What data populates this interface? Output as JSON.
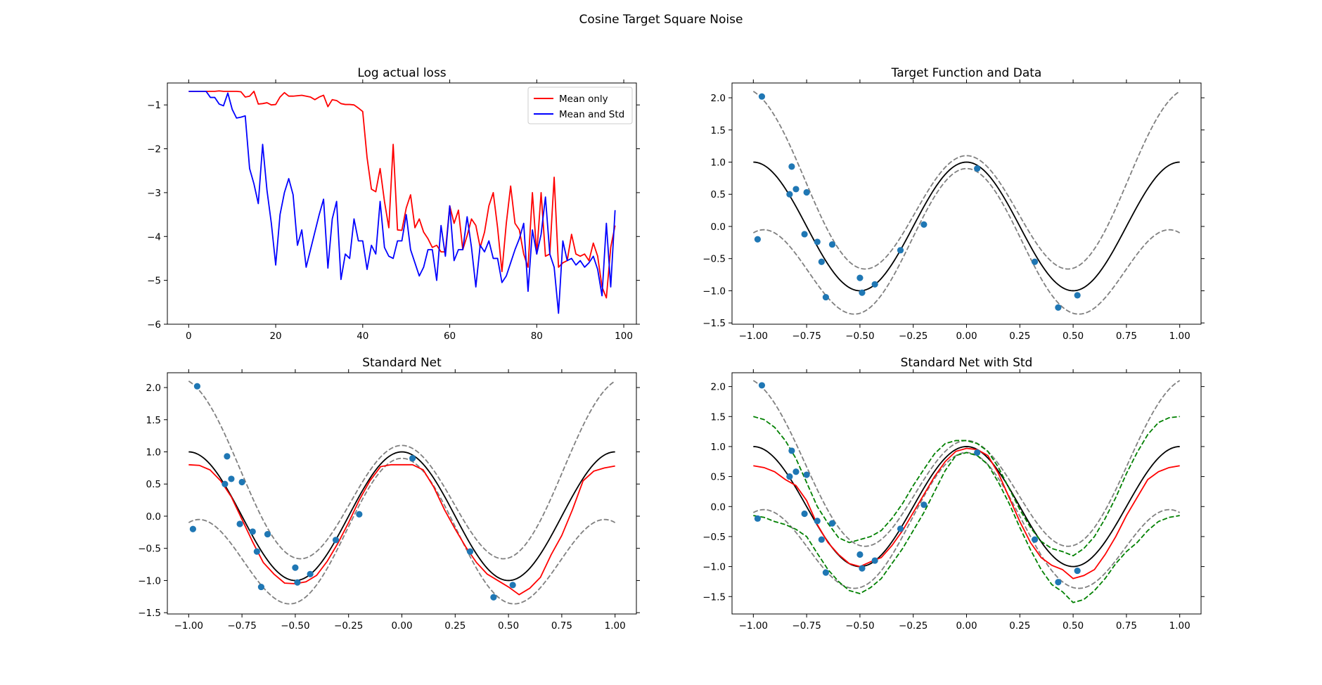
{
  "figure": {
    "suptitle": "Cosine Target Square Noise"
  },
  "chart_data": [
    {
      "id": "loss",
      "type": "line",
      "title": "Log actual loss",
      "xlabel": "",
      "ylabel": "",
      "xlim": [
        -4.9,
        102.9
      ],
      "ylim": [
        -6.0,
        -0.5
      ],
      "xticks": [
        0,
        20,
        40,
        60,
        80,
        100
      ],
      "xtick_labels": [
        "0",
        "20",
        "40",
        "60",
        "80",
        "100"
      ],
      "yticks": [
        -6,
        -5,
        -4,
        -3,
        -2,
        -1
      ],
      "ytick_labels": [
        "−6",
        "−5",
        "−4",
        "−3",
        "−2",
        "−1"
      ],
      "legend": {
        "placement": "top-right"
      },
      "series": [
        {
          "name": "Mean only",
          "color": "#ff0000",
          "x": [
            0,
            1,
            2,
            3,
            4,
            5,
            6,
            7,
            8,
            9,
            10,
            11,
            12,
            13,
            14,
            15,
            16,
            17,
            18,
            19,
            20,
            21,
            22,
            23,
            24,
            25,
            26,
            27,
            28,
            29,
            30,
            31,
            32,
            33,
            34,
            35,
            36,
            37,
            38,
            39,
            40,
            41,
            42,
            43,
            44,
            45,
            46,
            47,
            48,
            49,
            50,
            51,
            52,
            53,
            54,
            55,
            56,
            57,
            58,
            59,
            60,
            61,
            62,
            63,
            64,
            65,
            66,
            67,
            68,
            69,
            70,
            71,
            72,
            73,
            74,
            75,
            76,
            77,
            78,
            79,
            80,
            81,
            82,
            83,
            84,
            85,
            86,
            87,
            88,
            89,
            90,
            91,
            92,
            93,
            94,
            95,
            96,
            97,
            98
          ],
          "y": [
            -0.69,
            -0.69,
            -0.69,
            -0.69,
            -0.69,
            -0.69,
            -0.69,
            -0.68,
            -0.69,
            -0.69,
            -0.69,
            -0.69,
            -0.7,
            -0.82,
            -0.8,
            -0.69,
            -0.98,
            -0.97,
            -0.95,
            -1.0,
            -0.99,
            -0.82,
            -0.72,
            -0.8,
            -0.8,
            -0.79,
            -0.78,
            -0.8,
            -0.82,
            -0.88,
            -0.82,
            -0.78,
            -1.04,
            -0.88,
            -0.9,
            -0.97,
            -0.99,
            -0.99,
            -1.0,
            -1.07,
            -1.15,
            -2.2,
            -2.92,
            -2.98,
            -2.45,
            -3.2,
            -3.8,
            -1.9,
            -3.85,
            -3.86,
            -3.35,
            -3.05,
            -3.8,
            -3.6,
            -3.9,
            -4.05,
            -4.25,
            -4.2,
            -4.35,
            -4.35,
            -3.3,
            -3.7,
            -3.4,
            -4.3,
            -3.98,
            -3.6,
            -3.75,
            -4.25,
            -3.9,
            -3.3,
            -3.0,
            -3.8,
            -4.8,
            -3.7,
            -2.85,
            -3.7,
            -3.85,
            -4.4,
            -4.7,
            -3.0,
            -4.4,
            -3.0,
            -4.45,
            -4.4,
            -2.65,
            -4.7,
            -4.6,
            -4.55,
            -3.95,
            -4.4,
            -4.45,
            -4.4,
            -4.55,
            -4.15,
            -4.45,
            -5.15,
            -5.4,
            -4.25,
            -3.75
          ],
          "linewidth": 1.8
        },
        {
          "name": "Mean and Std",
          "color": "#0000ff",
          "x": [
            0,
            1,
            2,
            3,
            4,
            5,
            6,
            7,
            8,
            9,
            10,
            11,
            12,
            13,
            14,
            15,
            16,
            17,
            18,
            19,
            20,
            21,
            22,
            23,
            24,
            25,
            26,
            27,
            28,
            29,
            30,
            31,
            32,
            33,
            34,
            35,
            36,
            37,
            38,
            39,
            40,
            41,
            42,
            43,
            44,
            45,
            46,
            47,
            48,
            49,
            50,
            51,
            52,
            53,
            54,
            55,
            56,
            57,
            58,
            59,
            60,
            61,
            62,
            63,
            64,
            65,
            66,
            67,
            68,
            69,
            70,
            71,
            72,
            73,
            74,
            75,
            76,
            77,
            78,
            79,
            80,
            81,
            82,
            83,
            84,
            85,
            86,
            87,
            88,
            89,
            90,
            91,
            92,
            93,
            94,
            95,
            96,
            97,
            98
          ],
          "y": [
            -0.69,
            -0.69,
            -0.69,
            -0.69,
            -0.69,
            -0.83,
            -0.83,
            -0.98,
            -1.02,
            -0.73,
            -1.1,
            -1.3,
            -1.28,
            -1.25,
            -2.45,
            -2.8,
            -3.25,
            -1.9,
            -2.95,
            -3.7,
            -4.65,
            -3.5,
            -3.0,
            -2.68,
            -3.05,
            -4.2,
            -3.85,
            -4.7,
            -4.3,
            -3.9,
            -3.5,
            -3.15,
            -4.72,
            -3.6,
            -3.2,
            -4.98,
            -4.4,
            -4.5,
            -3.6,
            -4.1,
            -4.1,
            -4.75,
            -4.2,
            -4.4,
            -3.2,
            -4.25,
            -4.45,
            -4.5,
            -4.1,
            -4.1,
            -3.5,
            -4.3,
            -4.6,
            -4.9,
            -4.7,
            -4.3,
            -4.3,
            -5.0,
            -3.75,
            -4.45,
            -3.3,
            -4.55,
            -4.3,
            -4.3,
            -3.55,
            -4.25,
            -5.15,
            -4.2,
            -4.35,
            -4.1,
            -4.5,
            -4.5,
            -5.05,
            -4.9,
            -4.6,
            -4.3,
            -4.05,
            -3.7,
            -5.25,
            -3.85,
            -4.4,
            -3.95,
            -3.1,
            -4.4,
            -4.7,
            -5.75,
            -4.1,
            -4.55,
            -4.5,
            -4.65,
            -4.55,
            -4.7,
            -4.6,
            -4.45,
            -4.75,
            -5.35,
            -3.7,
            -5.15,
            -3.4
          ],
          "linewidth": 1.8
        }
      ]
    },
    {
      "id": "target",
      "type": "line",
      "title": "Target Function and Data",
      "xlabel": "",
      "ylabel": "",
      "xlim": [
        -1.1,
        1.1
      ],
      "ylim": [
        -1.52,
        2.23
      ],
      "xticks": [
        -1.0,
        -0.75,
        -0.5,
        -0.25,
        0.0,
        0.25,
        0.5,
        0.75,
        1.0
      ],
      "xtick_labels": [
        "−1.00",
        "−0.75",
        "−0.50",
        "−0.25",
        "0.00",
        "0.25",
        "0.50",
        "0.75",
        "1.00"
      ],
      "yticks": [
        -1.5,
        -1.0,
        -0.5,
        0.0,
        0.5,
        1.0,
        1.5,
        2.0
      ],
      "ytick_labels": [
        "−1.5",
        "−1.0",
        "−0.5",
        "0.0",
        "0.5",
        "1.0",
        "1.5",
        "2.0"
      ],
      "grid": false,
      "curves": {
        "mean": "cos(2*pi*x)",
        "band": "cos(2*pi*x) +/- (0.1 + x^2)"
      },
      "scatter": {
        "color": "#1f77b4",
        "x": [
          -0.98,
          -0.96,
          -0.83,
          -0.82,
          -0.8,
          -0.76,
          -0.75,
          -0.7,
          -0.68,
          -0.66,
          -0.63,
          -0.5,
          -0.49,
          -0.43,
          -0.31,
          -0.2,
          0.05,
          0.32,
          0.43,
          0.52
        ],
        "y": [
          -0.2,
          2.02,
          0.5,
          0.93,
          0.58,
          -0.12,
          0.53,
          -0.24,
          -0.55,
          -1.1,
          -0.28,
          -0.8,
          -1.03,
          -0.9,
          -0.37,
          0.03,
          0.9,
          -0.55,
          -1.26,
          -1.07
        ]
      }
    },
    {
      "id": "standard",
      "type": "line",
      "title": "Standard Net",
      "xlabel": "",
      "ylabel": "",
      "xlim": [
        -1.1,
        1.1
      ],
      "ylim": [
        -1.52,
        2.23
      ],
      "xticks": [
        -1.0,
        -0.75,
        -0.5,
        -0.25,
        0.0,
        0.25,
        0.5,
        0.75,
        1.0
      ],
      "xtick_labels": [
        "−1.00",
        "−0.75",
        "−0.50",
        "−0.25",
        "0.00",
        "0.25",
        "0.50",
        "0.75",
        "1.00"
      ],
      "yticks": [
        -1.5,
        -1.0,
        -0.5,
        0.0,
        0.5,
        1.0,
        1.5,
        2.0
      ],
      "ytick_labels": [
        "−1.5",
        "−1.0",
        "−0.5",
        "0.0",
        "0.5",
        "1.0",
        "1.5",
        "2.0"
      ],
      "prediction": {
        "color": "#ff0000",
        "x": [
          -1.0,
          -0.95,
          -0.9,
          -0.85,
          -0.8,
          -0.75,
          -0.7,
          -0.65,
          -0.6,
          -0.55,
          -0.5,
          -0.45,
          -0.4,
          -0.35,
          -0.3,
          -0.25,
          -0.2,
          -0.15,
          -0.1,
          -0.05,
          0.0,
          0.05,
          0.1,
          0.15,
          0.2,
          0.25,
          0.3,
          0.35,
          0.4,
          0.45,
          0.5,
          0.55,
          0.6,
          0.65,
          0.7,
          0.75,
          0.8,
          0.85,
          0.9,
          0.95,
          1.0
        ],
        "y": [
          0.8,
          0.79,
          0.72,
          0.55,
          0.3,
          -0.05,
          -0.4,
          -0.72,
          -0.9,
          -1.04,
          -1.05,
          -1.02,
          -0.92,
          -0.7,
          -0.42,
          -0.1,
          0.25,
          0.55,
          0.77,
          0.8,
          0.8,
          0.8,
          0.72,
          0.45,
          0.1,
          -0.2,
          -0.48,
          -0.72,
          -0.9,
          -1.0,
          -1.1,
          -1.22,
          -1.12,
          -0.95,
          -0.6,
          -0.3,
          0.1,
          0.55,
          0.7,
          0.75,
          0.78
        ]
      },
      "scatter_ref": "target"
    },
    {
      "id": "standard_std",
      "type": "line",
      "title": "Standard Net with Std",
      "xlabel": "",
      "ylabel": "",
      "xlim": [
        -1.1,
        1.1
      ],
      "ylim": [
        -1.79,
        2.23
      ],
      "xticks": [
        -1.0,
        -0.75,
        -0.5,
        -0.25,
        0.0,
        0.25,
        0.5,
        0.75,
        1.0
      ],
      "xtick_labels": [
        "−1.00",
        "−0.75",
        "−0.50",
        "−0.25",
        "0.00",
        "0.25",
        "0.50",
        "0.75",
        "1.00"
      ],
      "yticks": [
        -1.5,
        -1.0,
        -0.5,
        0.0,
        0.5,
        1.0,
        1.5,
        2.0
      ],
      "ytick_labels": [
        "−1.5",
        "−1.0",
        "−0.5",
        "0.0",
        "0.5",
        "1.0",
        "1.5",
        "2.0"
      ],
      "prediction": {
        "color": "#ff0000",
        "x": [
          -1.0,
          -0.95,
          -0.9,
          -0.85,
          -0.8,
          -0.75,
          -0.7,
          -0.65,
          -0.6,
          -0.55,
          -0.5,
          -0.45,
          -0.4,
          -0.35,
          -0.3,
          -0.25,
          -0.2,
          -0.15,
          -0.1,
          -0.05,
          0.0,
          0.05,
          0.1,
          0.15,
          0.2,
          0.25,
          0.3,
          0.35,
          0.4,
          0.45,
          0.5,
          0.55,
          0.6,
          0.65,
          0.7,
          0.75,
          0.8,
          0.85,
          0.9,
          0.95,
          1.0
        ],
        "y": [
          0.68,
          0.65,
          0.58,
          0.45,
          0.35,
          0.1,
          -0.3,
          -0.6,
          -0.8,
          -0.95,
          -1.0,
          -0.92,
          -0.85,
          -0.65,
          -0.4,
          -0.1,
          0.2,
          0.5,
          0.75,
          0.92,
          0.97,
          0.95,
          0.85,
          0.55,
          0.15,
          -0.25,
          -0.6,
          -0.85,
          -0.98,
          -1.05,
          -1.2,
          -1.15,
          -1.05,
          -0.8,
          -0.5,
          -0.15,
          0.15,
          0.45,
          0.58,
          0.65,
          0.68
        ]
      },
      "upper_band": {
        "color": "#008000",
        "x": [
          -1.0,
          -0.95,
          -0.9,
          -0.85,
          -0.8,
          -0.75,
          -0.7,
          -0.65,
          -0.6,
          -0.55,
          -0.5,
          -0.45,
          -0.4,
          -0.35,
          -0.3,
          -0.25,
          -0.2,
          -0.15,
          -0.1,
          -0.05,
          0.0,
          0.05,
          0.1,
          0.15,
          0.2,
          0.25,
          0.3,
          0.35,
          0.4,
          0.45,
          0.5,
          0.55,
          0.6,
          0.65,
          0.7,
          0.75,
          0.8,
          0.85,
          0.9,
          0.95,
          1.0
        ],
        "y": [
          1.5,
          1.45,
          1.32,
          1.1,
          0.8,
          0.4,
          0.0,
          -0.28,
          -0.52,
          -0.6,
          -0.55,
          -0.5,
          -0.4,
          -0.2,
          0.05,
          0.35,
          0.62,
          0.88,
          1.05,
          1.1,
          1.1,
          1.05,
          0.92,
          0.65,
          0.3,
          -0.05,
          -0.35,
          -0.58,
          -0.7,
          -0.75,
          -0.82,
          -0.7,
          -0.5,
          -0.2,
          0.15,
          0.55,
          0.9,
          1.2,
          1.4,
          1.48,
          1.5
        ]
      },
      "lower_band": {
        "color": "#008000",
        "x": [
          -1.0,
          -0.95,
          -0.9,
          -0.85,
          -0.8,
          -0.75,
          -0.7,
          -0.65,
          -0.6,
          -0.55,
          -0.5,
          -0.45,
          -0.4,
          -0.35,
          -0.3,
          -0.25,
          -0.2,
          -0.15,
          -0.1,
          -0.05,
          0.0,
          0.05,
          0.1,
          0.15,
          0.2,
          0.25,
          0.3,
          0.35,
          0.4,
          0.45,
          0.5,
          0.55,
          0.6,
          0.65,
          0.7,
          0.75,
          0.8,
          0.85,
          0.9,
          0.95,
          1.0
        ],
        "y": [
          -0.15,
          -0.18,
          -0.25,
          -0.3,
          -0.38,
          -0.5,
          -0.78,
          -1.05,
          -1.25,
          -1.4,
          -1.45,
          -1.35,
          -1.2,
          -0.95,
          -0.7,
          -0.4,
          -0.1,
          0.25,
          0.6,
          0.85,
          0.9,
          0.85,
          0.7,
          0.4,
          0.05,
          -0.35,
          -0.72,
          -1.05,
          -1.3,
          -1.42,
          -1.6,
          -1.55,
          -1.4,
          -1.2,
          -0.95,
          -0.75,
          -0.6,
          -0.4,
          -0.25,
          -0.18,
          -0.15
        ]
      },
      "scatter_ref": "target"
    }
  ],
  "colors": {
    "target": "#000000",
    "noise_band": "#808080",
    "points": "#1f77b4"
  }
}
